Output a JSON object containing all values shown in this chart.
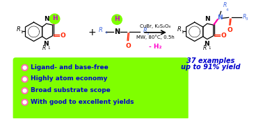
{
  "background_color": "#ffffff",
  "green_box_color": "#7FFF00",
  "bullet_color_outer": "#FF69B4",
  "bullet_color_inner": "#ffffff",
  "bullet_text_color": "#0000CD",
  "bullets": [
    "Ligand- and base-free",
    "Highly atom economy",
    "Broad substrate scope",
    "With good to excellent yields"
  ],
  "arrow_text1": "CuBr, K₂S₂O₈",
  "arrow_text2": "MW, 80°C, 0.5h",
  "minus_h2_text": "- H₂",
  "minus_h2_color": "#FF00CC",
  "result_text1": "37 examples",
  "result_text2": "up to 91% yield",
  "result_color": "#0000CD",
  "H_bubble_color": "#7FFF00",
  "H_bubble_text_color": "#CC00CC",
  "bond_pink": "#FF00AA",
  "blue_label": "#4169E1",
  "black": "#000000",
  "red_O": "#FF2200",
  "lw": 0.9
}
